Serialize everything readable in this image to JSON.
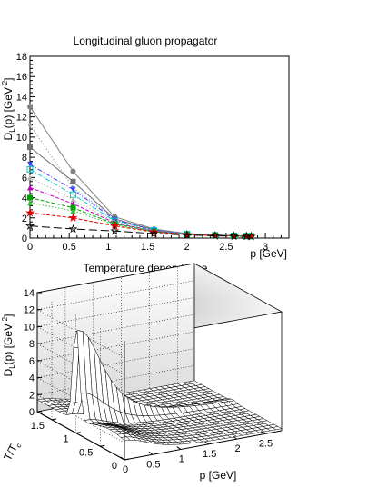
{
  "panel1": {
    "title": "Longitudinal gluon propagator",
    "ylabel_main": "D",
    "ylabel_sub": "L",
    "ylabel_rest": "(p) [GeV",
    "ylabel_sup": "-2",
    "ylabel_close": "]",
    "xlabel": "p [GeV]"
  },
  "panel2": {
    "title": "Temperature dependence",
    "zlabel_main": "D",
    "zlabel_sub": "L",
    "zlabel_rest": "(p) [GeV",
    "zlabel_sup": "-2",
    "zlabel_close": "]",
    "xlabel": "p [GeV]",
    "ylabel_main": "T/T",
    "ylabel_sub": "c"
  },
  "chart_data": [
    {
      "type": "line",
      "title": "Longitudinal gluon propagator",
      "xlabel": "p [GeV]",
      "ylabel": "D_L(p) [GeV^-2]",
      "xlim": [
        0,
        3.3
      ],
      "ylim": [
        0,
        18
      ],
      "xticks": [
        "0",
        "0.5",
        "1",
        "1.5",
        "2",
        "2.5",
        "3"
      ],
      "yticks": [
        "0",
        "2",
        "4",
        "6",
        "8",
        "10",
        "12",
        "14",
        "16",
        "18"
      ],
      "x": [
        0,
        0.55,
        1.08,
        1.58,
        2.0,
        2.36,
        2.6,
        2.76,
        2.82
      ],
      "series": [
        {
          "values": [
            13.0,
            6.6,
            2.1,
            0.9,
            0.45,
            0.32,
            0.25,
            0.22,
            0.2
          ],
          "color": "#808080",
          "marker": "circle",
          "dash": "solid"
        },
        {
          "values": [
            11.2,
            5.0,
            1.9,
            0.85,
            0.45,
            0.3,
            0.24,
            0.21,
            0.2
          ],
          "color": "#a0a0a0",
          "marker": "circle-small",
          "dash": "dotted"
        },
        {
          "values": [
            9.0,
            5.6,
            1.9,
            0.8,
            0.42,
            0.3,
            0.24,
            0.21,
            0.19
          ],
          "color": "#707070",
          "marker": "square",
          "dash": "solid"
        },
        {
          "values": [
            7.3,
            4.8,
            1.8,
            0.8,
            0.42,
            0.3,
            0.23,
            0.2,
            0.19
          ],
          "color": "#4040ff",
          "marker": "triangle-down",
          "dash": "dashdot"
        },
        {
          "values": [
            6.8,
            4.3,
            1.7,
            0.75,
            0.4,
            0.29,
            0.23,
            0.2,
            0.19
          ],
          "color": "#00c8c8",
          "marker": "square-open",
          "dash": "dashdot"
        },
        {
          "values": [
            6.0,
            3.8,
            1.6,
            0.72,
            0.4,
            0.28,
            0.22,
            0.2,
            0.18
          ],
          "color": "#b0b0b0",
          "marker": "triangle",
          "dash": "dotted"
        },
        {
          "values": [
            5.0,
            3.4,
            1.5,
            0.7,
            0.38,
            0.27,
            0.22,
            0.19,
            0.18
          ],
          "color": "#c000c0",
          "marker": "triangle",
          "dash": "dashed"
        },
        {
          "values": [
            4.0,
            3.0,
            1.4,
            0.65,
            0.36,
            0.26,
            0.21,
            0.19,
            0.18
          ],
          "color": "#00a000",
          "marker": "square",
          "dash": "dashed"
        },
        {
          "values": [
            3.5,
            2.7,
            1.3,
            0.62,
            0.35,
            0.25,
            0.2,
            0.18,
            0.17
          ],
          "color": "#30c030",
          "marker": "triangle",
          "dash": "dotted"
        },
        {
          "values": [
            2.5,
            2.0,
            1.2,
            0.6,
            0.34,
            0.25,
            0.2,
            0.18,
            0.17
          ],
          "color": "#e00000",
          "marker": "star",
          "dash": "dashed"
        },
        {
          "values": [
            1.2,
            0.9,
            0.7,
            0.45,
            0.3,
            0.22,
            0.19,
            0.17,
            0.16
          ],
          "color": "#000000",
          "marker": "star-open",
          "dash": "longdash"
        }
      ]
    },
    {
      "type": "surface",
      "title": "Temperature dependence",
      "xlabel": "p [GeV]",
      "ylabel": "T/T_c",
      "zlabel": "D_L(p) [GeV^-2]",
      "xlim": [
        0,
        2.8
      ],
      "ylim": [
        0,
        1.8
      ],
      "zlim": [
        0,
        14
      ],
      "xticks": [
        "0",
        "0.5",
        "1",
        "1.5",
        "2",
        "2.5"
      ],
      "yticks": [
        "0",
        "0.5",
        "1",
        "1.5"
      ],
      "zticks": [
        "0",
        "2",
        "4",
        "6",
        "8",
        "10",
        "12",
        "14"
      ],
      "peak": {
        "p": 0,
        "T_over_Tc": 1.0,
        "value": 13.0
      }
    }
  ]
}
